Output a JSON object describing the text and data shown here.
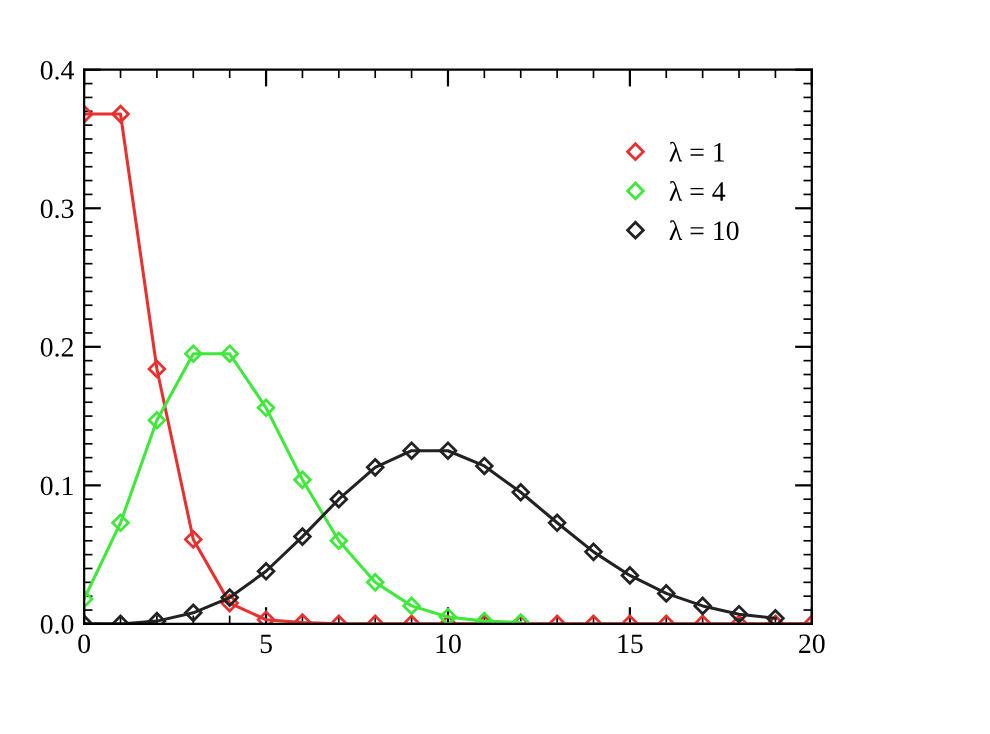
{
  "chart_data": {
    "type": "line",
    "marker": "diamond",
    "line_style": "solid",
    "legend": "top right",
    "grid": false,
    "xlim": [
      0,
      20
    ],
    "xticks": [
      0,
      5,
      10,
      15,
      20
    ],
    "ylim": [
      0,
      0.4
    ],
    "yticks": [
      {
        "value": 0,
        "label": "0.0"
      },
      0.1,
      0.2,
      0.3,
      0.4
    ],
    "series": [
      {
        "name": "λ = 1",
        "color": "#e8312f",
        "x": [
          0,
          1,
          2,
          3,
          4,
          5,
          6,
          7,
          8,
          9,
          10,
          11,
          12,
          13,
          14,
          15,
          16,
          17,
          18,
          19,
          20
        ],
        "values": [
          0.368,
          0.368,
          0.184,
          0.061,
          0.015,
          0.003,
          0.001,
          0,
          0,
          0,
          0,
          0,
          0,
          0,
          0,
          0,
          0,
          0,
          0,
          0,
          0
        ]
      },
      {
        "name": "λ = 4",
        "color": "#3fe83a",
        "x": [
          0,
          1,
          2,
          3,
          4,
          5,
          6,
          7,
          8,
          9,
          10,
          11,
          12
        ],
        "values": [
          0.018,
          0.073,
          0.147,
          0.195,
          0.195,
          0.156,
          0.104,
          0.06,
          0.03,
          0.013,
          0.005,
          0.002,
          0.001
        ]
      },
      {
        "name": "λ = 10",
        "color": "#222222",
        "x": [
          0,
          1,
          2,
          3,
          4,
          5,
          6,
          7,
          8,
          9,
          10,
          11,
          12,
          13,
          14,
          15,
          16,
          17,
          18,
          19
        ],
        "values": [
          0,
          0,
          0.002,
          0.008,
          0.019,
          0.038,
          0.063,
          0.09,
          0.113,
          0.125,
          0.125,
          0.114,
          0.095,
          0.073,
          0.052,
          0.035,
          0.022,
          0.013,
          0.007,
          0.004
        ]
      }
    ]
  }
}
